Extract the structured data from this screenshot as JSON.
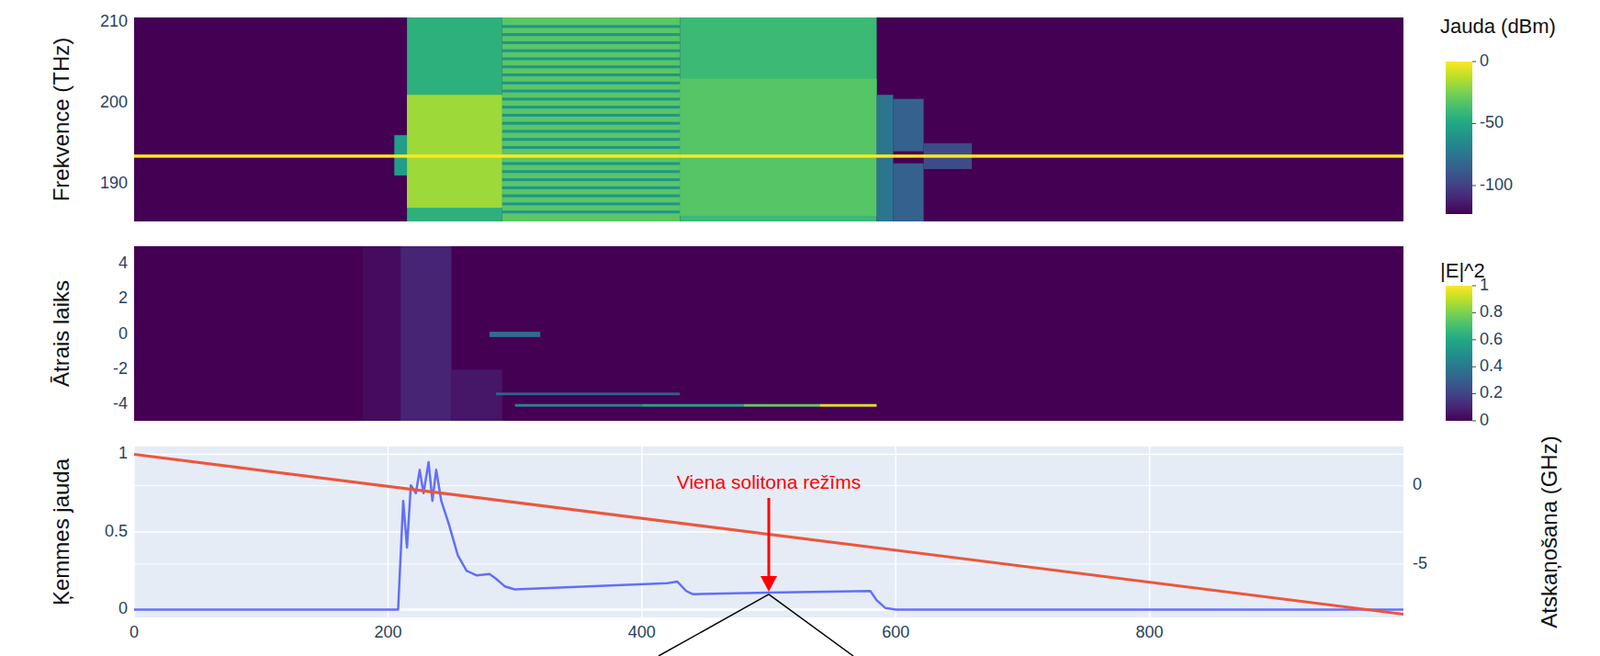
{
  "chart_data": [
    {
      "type": "heatmap",
      "y_label": "Frekvence (THz)",
      "xlim": [
        0,
        1000
      ],
      "ylim": [
        185.3,
        210.6
      ],
      "yticks": [
        190,
        200,
        210
      ],
      "tick_labels": "y",
      "colorbar": {
        "title": "Jauda (dBm)",
        "range": [
          -123,
          0
        ],
        "ticks": [
          0,
          -50,
          -100
        ]
      },
      "background": -123,
      "cells": [
        {
          "x": [
            205,
            215
          ],
          "y": [
            191,
            196
          ],
          "z": -55
        },
        {
          "x": [
            215,
            290
          ],
          "y": [
            185.3,
            210.6
          ],
          "z": -45
        },
        {
          "x": [
            215,
            290
          ],
          "y": [
            187,
            201
          ],
          "z": -18
        },
        {
          "x": [
            290,
            430
          ],
          "y": [
            185.3,
            210.6
          ],
          "z": -32
        },
        {
          "x": [
            290,
            430
          ],
          "y": [
            186.3,
            186.65
          ],
          "z": -60
        },
        {
          "x": [
            290,
            430
          ],
          "y": [
            187.3,
            187.65
          ],
          "z": -60
        },
        {
          "x": [
            290,
            430
          ],
          "y": [
            188.3,
            188.65
          ],
          "z": -60
        },
        {
          "x": [
            290,
            430
          ],
          "y": [
            189.3,
            189.65
          ],
          "z": -60
        },
        {
          "x": [
            290,
            430
          ],
          "y": [
            190.3,
            190.65
          ],
          "z": -60
        },
        {
          "x": [
            290,
            430
          ],
          "y": [
            191.3,
            191.65
          ],
          "z": -60
        },
        {
          "x": [
            290,
            430
          ],
          "y": [
            192.3,
            192.65
          ],
          "z": -60
        },
        {
          "x": [
            290,
            430
          ],
          "y": [
            194.3,
            194.65
          ],
          "z": -60
        },
        {
          "x": [
            290,
            430
          ],
          "y": [
            195.3,
            195.65
          ],
          "z": -60
        },
        {
          "x": [
            290,
            430
          ],
          "y": [
            196.3,
            196.65
          ],
          "z": -60
        },
        {
          "x": [
            290,
            430
          ],
          "y": [
            197.3,
            197.65
          ],
          "z": -60
        },
        {
          "x": [
            290,
            430
          ],
          "y": [
            198.3,
            198.65
          ],
          "z": -60
        },
        {
          "x": [
            290,
            430
          ],
          "y": [
            199.3,
            199.65
          ],
          "z": -60
        },
        {
          "x": [
            290,
            430
          ],
          "y": [
            200.3,
            200.65
          ],
          "z": -60
        },
        {
          "x": [
            290,
            430
          ],
          "y": [
            201.3,
            201.65
          ],
          "z": -60
        },
        {
          "x": [
            290,
            430
          ],
          "y": [
            202.3,
            202.65
          ],
          "z": -60
        },
        {
          "x": [
            290,
            430
          ],
          "y": [
            203.3,
            203.65
          ],
          "z": -60
        },
        {
          "x": [
            290,
            430
          ],
          "y": [
            204.3,
            204.65
          ],
          "z": -60
        },
        {
          "x": [
            290,
            430
          ],
          "y": [
            205.3,
            205.65
          ],
          "z": -60
        },
        {
          "x": [
            290,
            430
          ],
          "y": [
            206.3,
            206.65
          ],
          "z": -60
        },
        {
          "x": [
            290,
            430
          ],
          "y": [
            207.3,
            207.65
          ],
          "z": -60
        },
        {
          "x": [
            290,
            430
          ],
          "y": [
            208.3,
            208.65
          ],
          "z": -60
        },
        {
          "x": [
            290,
            430
          ],
          "y": [
            209.3,
            209.65
          ],
          "z": -60
        },
        {
          "x": [
            430,
            585
          ],
          "y": [
            185.3,
            210.6
          ],
          "z": -40
        },
        {
          "x": [
            430,
            585
          ],
          "y": [
            186,
            203
          ],
          "z": -33
        },
        {
          "x": [
            585,
            598
          ],
          "y": [
            185.3,
            201
          ],
          "z": -75
        },
        {
          "x": [
            598,
            622
          ],
          "y": [
            194,
            200.5
          ],
          "z": -85
        },
        {
          "x": [
            598,
            622
          ],
          "y": [
            185.3,
            192.5
          ],
          "z": -85
        },
        {
          "x": [
            622,
            660
          ],
          "y": [
            191.8,
            195
          ],
          "z": -95
        },
        {
          "x": [
            0,
            1000
          ],
          "y": [
            193.2,
            193.6
          ],
          "z": 0
        }
      ]
    },
    {
      "type": "heatmap",
      "y_label": "Ātrais laiks",
      "xlim": [
        0,
        1000
      ],
      "ylim": [
        -4.9,
        5
      ],
      "yticks": [
        -4,
        -2,
        0,
        2,
        4
      ],
      "tick_labels": "y",
      "colorbar": {
        "title": "|E|^2",
        "range": [
          0,
          1
        ],
        "ticks": [
          0,
          0.2,
          0.4,
          0.6,
          0.8,
          1
        ]
      },
      "background": 0,
      "cells": [
        {
          "x": [
            180,
            210
          ],
          "y": [
            -4.9,
            5
          ],
          "z": 0.03
        },
        {
          "x": [
            210,
            250
          ],
          "y": [
            -4.9,
            5
          ],
          "z": 0.1
        },
        {
          "x": [
            250,
            290
          ],
          "y": [
            -4.9,
            -2
          ],
          "z": 0.06
        },
        {
          "x": [
            280,
            320
          ],
          "y": [
            -0.15,
            0.15
          ],
          "z": 0.35
        },
        {
          "x": [
            285,
            430
          ],
          "y": [
            -3.45,
            -3.3
          ],
          "z": 0.3
        },
        {
          "x": [
            300,
            400
          ],
          "y": [
            -4.1,
            -3.95
          ],
          "z": 0.45
        },
        {
          "x": [
            400,
            480
          ],
          "y": [
            -4.1,
            -3.95
          ],
          "z": 0.6
        },
        {
          "x": [
            480,
            540
          ],
          "y": [
            -4.1,
            -3.95
          ],
          "z": 0.75
        },
        {
          "x": [
            540,
            585
          ],
          "y": [
            -4.1,
            -3.95
          ],
          "z": 0.95
        }
      ]
    },
    {
      "type": "line",
      "y_label": "Ķemmes jauda",
      "y2_label": "Atskaņošana (GHz)",
      "xlim": [
        0,
        1000
      ],
      "ylim": [
        -0.05,
        1.05
      ],
      "y2lim": [
        -8.4,
        2.5
      ],
      "xticks": [
        0,
        200,
        400,
        600,
        800
      ],
      "yticks": [
        0,
        0.5,
        1
      ],
      "y2ticks": [
        0,
        -5
      ],
      "grid": true,
      "series": [
        {
          "color": "#636efa",
          "x": [
            0,
            208,
            212,
            215,
            218,
            222,
            225,
            228,
            232,
            235,
            238,
            242,
            248,
            255,
            262,
            270,
            280,
            285,
            292,
            300,
            420,
            428,
            435,
            440,
            500,
            580,
            585,
            592,
            600,
            1000
          ],
          "values": [
            0,
            0,
            0.7,
            0.4,
            0.8,
            0.75,
            0.9,
            0.75,
            0.95,
            0.7,
            0.9,
            0.7,
            0.55,
            0.35,
            0.25,
            0.22,
            0.23,
            0.2,
            0.15,
            0.13,
            0.17,
            0.18,
            0.12,
            0.1,
            0.11,
            0.12,
            0.06,
            0.01,
            0,
            0
          ]
        },
        {
          "color": "#ef553b",
          "axis": "y2",
          "x": [
            0,
            1000
          ],
          "values": [
            2,
            -8.2
          ]
        }
      ],
      "annotation": {
        "text": "Viena solitona režīms",
        "x": 500,
        "y": 0.11,
        "color": "#ff0000"
      }
    }
  ]
}
